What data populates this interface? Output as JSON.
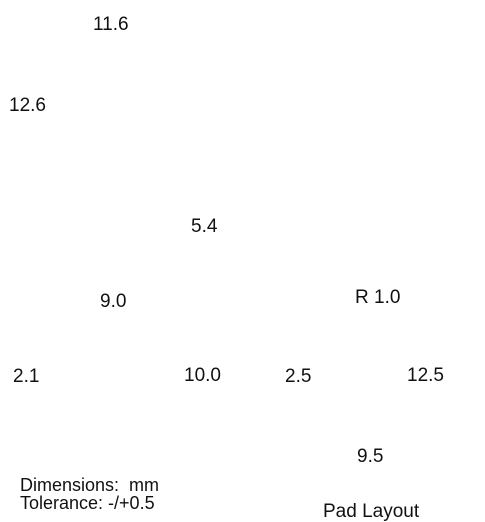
{
  "drawing": {
    "body_dimensions": {
      "top_width": "11.6",
      "left_height": "12.6",
      "window_height": "5.4",
      "window_width": "9.0",
      "bottom_left": "2.1",
      "bottom_width": "10.0"
    },
    "pad_layout": {
      "corner_radius": "R 1.0",
      "pad_gap": "2.5",
      "overall_width": "12.5",
      "pad_height": "9.5",
      "caption": "Pad Layout"
    },
    "notes": {
      "units": "Dimensions:  mm",
      "tolerance": "Tolerance: -/+0.5"
    }
  }
}
